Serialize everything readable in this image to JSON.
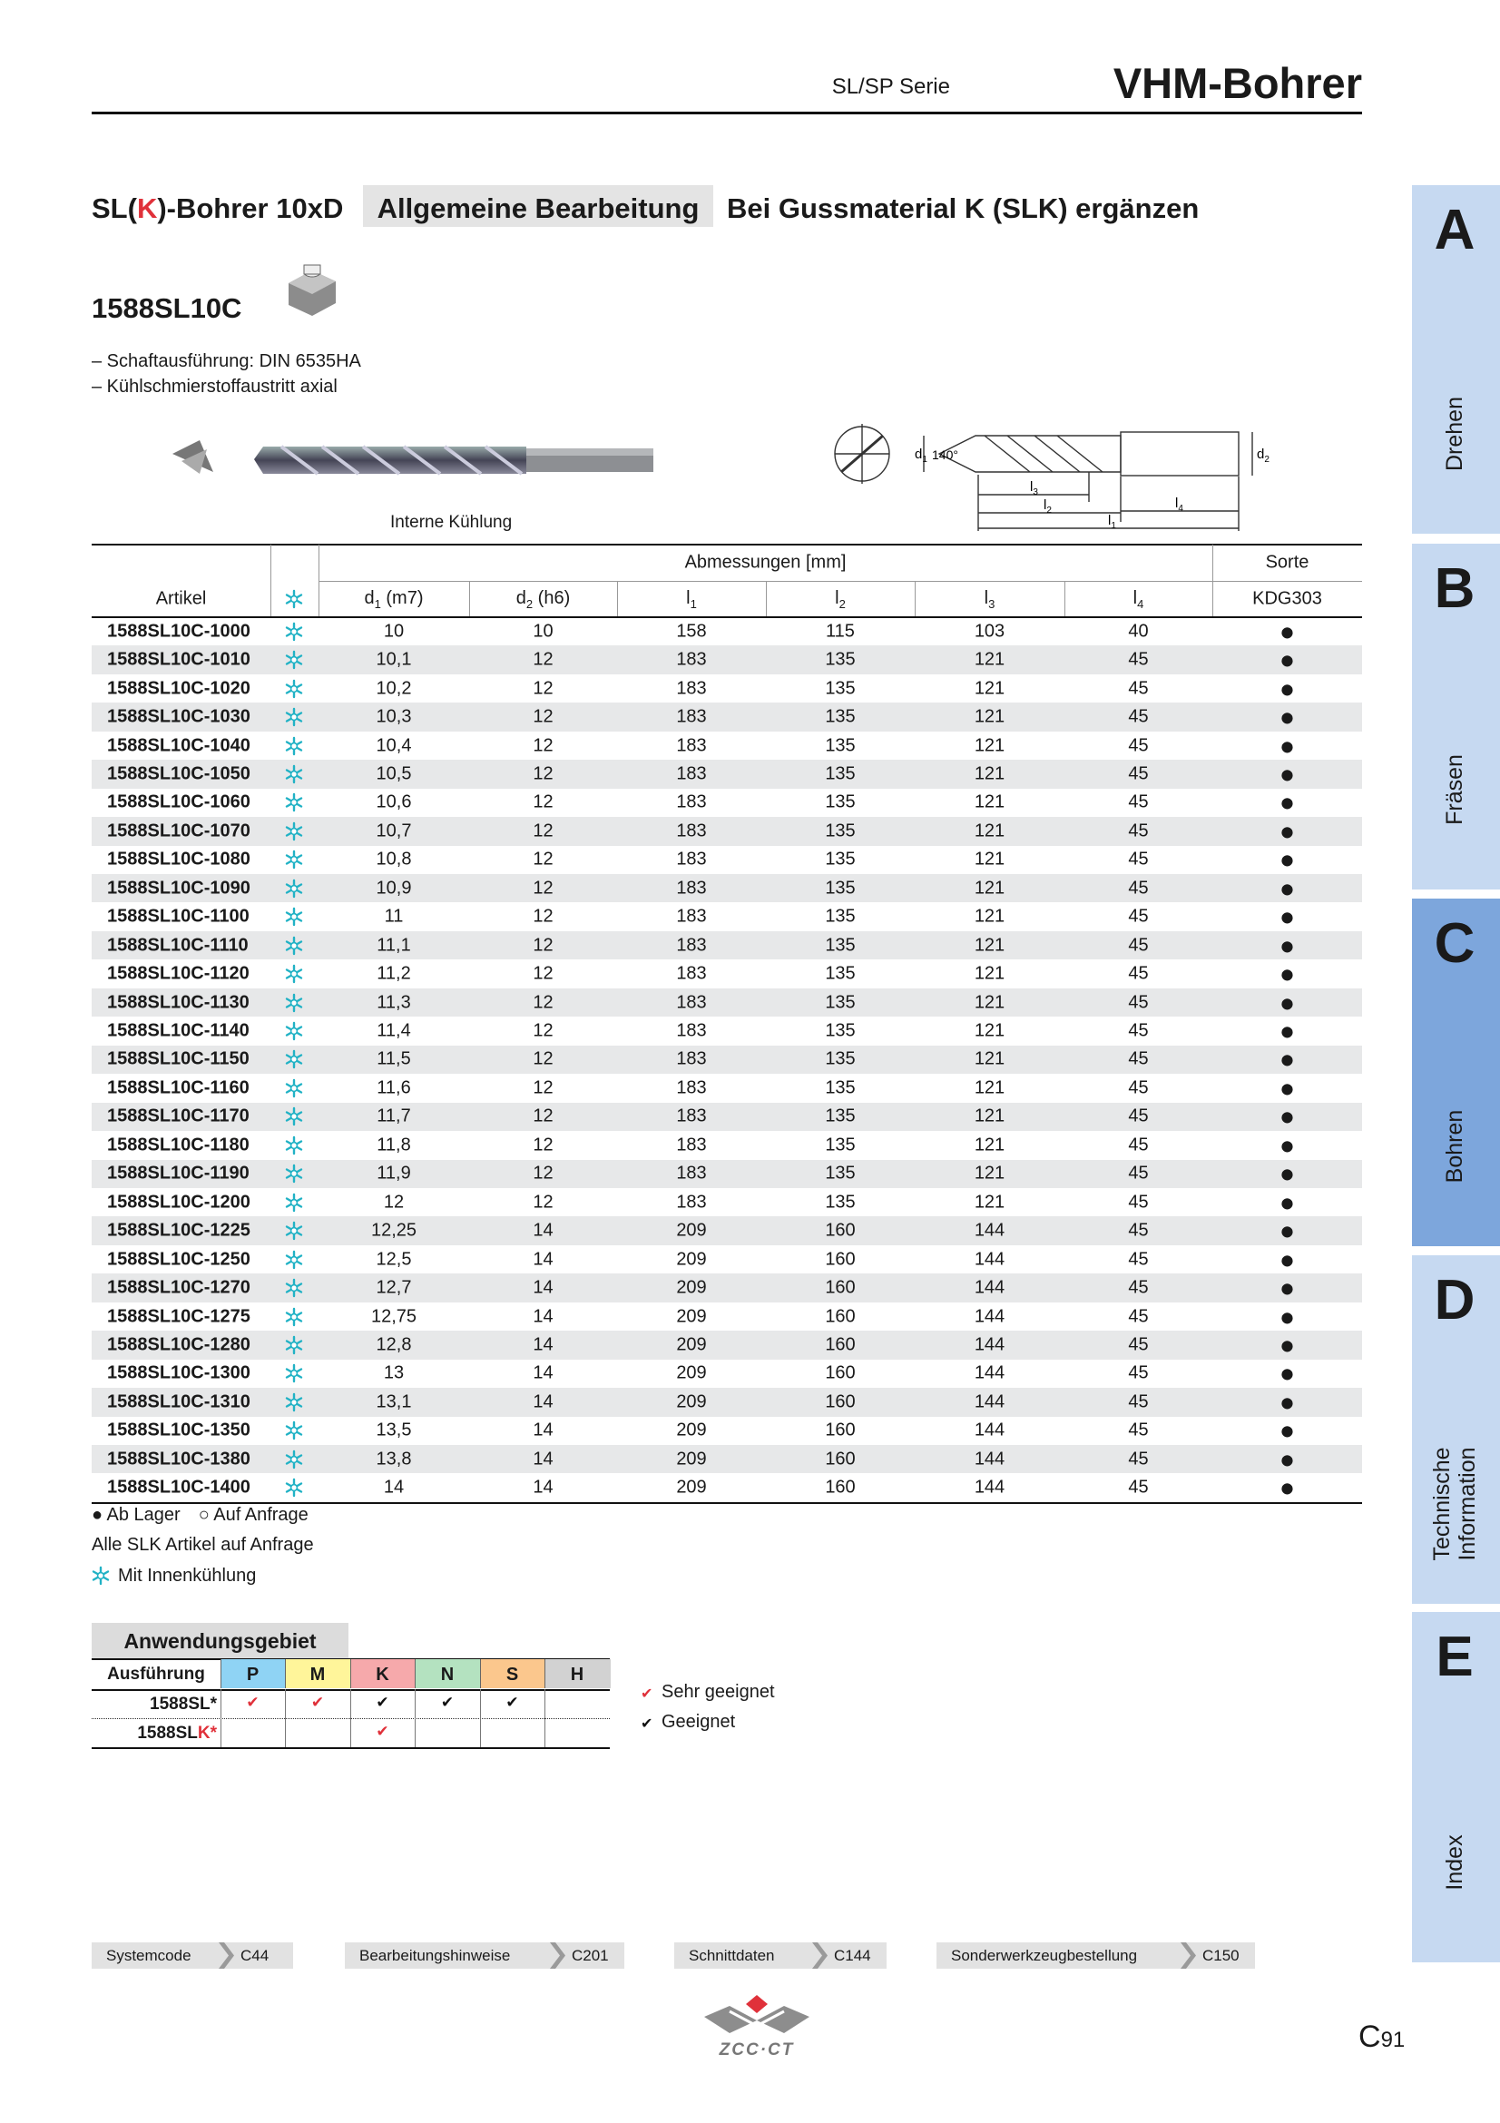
{
  "header": {
    "series": "SL/SP Serie",
    "title": "VHM-Bohrer"
  },
  "product": {
    "title": [
      "SL(",
      "K",
      ")-Bohrer 10xD"
    ],
    "tag": "Allgemeine Bearbeitung",
    "note": "Bei Gussmaterial K (SLK) ergänzen",
    "code": "1588SL10C",
    "features": [
      "– Schaftausführung: DIN 6535HA",
      "– Kühlschmierstoffaustritt axial"
    ],
    "image_caption": "Interne Kühlung",
    "diagram": {
      "angle": "140°",
      "d1": {
        "base": "d",
        "sub": "1"
      },
      "d2": {
        "base": "d",
        "sub": "2"
      },
      "l1": {
        "base": "l",
        "sub": "1"
      },
      "l2": {
        "base": "l",
        "sub": "2"
      },
      "l3": {
        "base": "l",
        "sub": "3"
      },
      "l4": {
        "base": "l",
        "sub": "4"
      }
    }
  },
  "table": {
    "group": "Abmessungen [mm]",
    "grade_group": "Sorte",
    "grade": "KDG303",
    "columns": [
      {
        "text": "Artikel"
      },
      {
        "base": "d",
        "sub": "1",
        "suffix": " (m7)"
      },
      {
        "base": "d",
        "sub": "2",
        "suffix": " (h6)"
      },
      {
        "base": "l",
        "sub": "1"
      },
      {
        "base": "l",
        "sub": "2"
      },
      {
        "base": "l",
        "sub": "3"
      },
      {
        "base": "l",
        "sub": "4"
      }
    ],
    "rows": [
      [
        "1588SL10C-1000",
        "10",
        "10",
        "158",
        "115",
        "103",
        "40",
        "●"
      ],
      [
        "1588SL10C-1010",
        "10,1",
        "12",
        "183",
        "135",
        "121",
        "45",
        "●"
      ],
      [
        "1588SL10C-1020",
        "10,2",
        "12",
        "183",
        "135",
        "121",
        "45",
        "●"
      ],
      [
        "1588SL10C-1030",
        "10,3",
        "12",
        "183",
        "135",
        "121",
        "45",
        "●"
      ],
      [
        "1588SL10C-1040",
        "10,4",
        "12",
        "183",
        "135",
        "121",
        "45",
        "●"
      ],
      [
        "1588SL10C-1050",
        "10,5",
        "12",
        "183",
        "135",
        "121",
        "45",
        "●"
      ],
      [
        "1588SL10C-1060",
        "10,6",
        "12",
        "183",
        "135",
        "121",
        "45",
        "●"
      ],
      [
        "1588SL10C-1070",
        "10,7",
        "12",
        "183",
        "135",
        "121",
        "45",
        "●"
      ],
      [
        "1588SL10C-1080",
        "10,8",
        "12",
        "183",
        "135",
        "121",
        "45",
        "●"
      ],
      [
        "1588SL10C-1090",
        "10,9",
        "12",
        "183",
        "135",
        "121",
        "45",
        "●"
      ],
      [
        "1588SL10C-1100",
        "11",
        "12",
        "183",
        "135",
        "121",
        "45",
        "●"
      ],
      [
        "1588SL10C-1110",
        "11,1",
        "12",
        "183",
        "135",
        "121",
        "45",
        "●"
      ],
      [
        "1588SL10C-1120",
        "11,2",
        "12",
        "183",
        "135",
        "121",
        "45",
        "●"
      ],
      [
        "1588SL10C-1130",
        "11,3",
        "12",
        "183",
        "135",
        "121",
        "45",
        "●"
      ],
      [
        "1588SL10C-1140",
        "11,4",
        "12",
        "183",
        "135",
        "121",
        "45",
        "●"
      ],
      [
        "1588SL10C-1150",
        "11,5",
        "12",
        "183",
        "135",
        "121",
        "45",
        "●"
      ],
      [
        "1588SL10C-1160",
        "11,6",
        "12",
        "183",
        "135",
        "121",
        "45",
        "●"
      ],
      [
        "1588SL10C-1170",
        "11,7",
        "12",
        "183",
        "135",
        "121",
        "45",
        "●"
      ],
      [
        "1588SL10C-1180",
        "11,8",
        "12",
        "183",
        "135",
        "121",
        "45",
        "●"
      ],
      [
        "1588SL10C-1190",
        "11,9",
        "12",
        "183",
        "135",
        "121",
        "45",
        "●"
      ],
      [
        "1588SL10C-1200",
        "12",
        "12",
        "183",
        "135",
        "121",
        "45",
        "●"
      ],
      [
        "1588SL10C-1225",
        "12,25",
        "14",
        "209",
        "160",
        "144",
        "45",
        "●"
      ],
      [
        "1588SL10C-1250",
        "12,5",
        "14",
        "209",
        "160",
        "144",
        "45",
        "●"
      ],
      [
        "1588SL10C-1270",
        "12,7",
        "14",
        "209",
        "160",
        "144",
        "45",
        "●"
      ],
      [
        "1588SL10C-1275",
        "12,75",
        "14",
        "209",
        "160",
        "144",
        "45",
        "●"
      ],
      [
        "1588SL10C-1280",
        "12,8",
        "14",
        "209",
        "160",
        "144",
        "45",
        "●"
      ],
      [
        "1588SL10C-1300",
        "13",
        "14",
        "209",
        "160",
        "144",
        "45",
        "●"
      ],
      [
        "1588SL10C-1310",
        "13,1",
        "14",
        "209",
        "160",
        "144",
        "45",
        "●"
      ],
      [
        "1588SL10C-1350",
        "13,5",
        "14",
        "209",
        "160",
        "144",
        "45",
        "●"
      ],
      [
        "1588SL10C-1380",
        "13,8",
        "14",
        "209",
        "160",
        "144",
        "45",
        "●"
      ],
      [
        "1588SL10C-1400",
        "14",
        "14",
        "209",
        "160",
        "144",
        "45",
        "●"
      ]
    ]
  },
  "legend": {
    "stock": "● Ab Lager",
    "request": "○ Auf Anfrage",
    "slk": "Alle SLK Artikel auf Anfrage",
    "coolant": "Mit Innenkühlung"
  },
  "application": {
    "title": "Anwendungsgebiet",
    "row_header": "Ausführung",
    "materials": [
      {
        "label": "P",
        "color": "#8fd3f4"
      },
      {
        "label": "M",
        "color": "#fff59a"
      },
      {
        "label": "K",
        "color": "#f6a9ab"
      },
      {
        "label": "N",
        "color": "#b4e2c0"
      },
      {
        "label": "S",
        "color": "#fbc78d"
      },
      {
        "label": "H",
        "color": "#d2d2d2"
      }
    ],
    "rows": [
      {
        "name": [
          "1588SL",
          "*"
        ],
        "cells": [
          {
            "symbol": "✔",
            "color": "#e0313a"
          },
          {
            "symbol": "✔",
            "color": "#e0313a"
          },
          {
            "symbol": "✔",
            "color": "#111111"
          },
          {
            "symbol": "✔",
            "color": "#111111"
          },
          {
            "symbol": "✔",
            "color": "#111111"
          },
          null
        ]
      },
      {
        "name": [
          "1588SL",
          "K",
          "*"
        ],
        "cells": [
          null,
          null,
          {
            "symbol": "✔",
            "color": "#e0313a"
          },
          null,
          null,
          null
        ]
      }
    ],
    "key": [
      {
        "symbol": "✔",
        "color": "#e0313a",
        "label": "Sehr geeignet"
      },
      {
        "symbol": "✔",
        "color": "#111111",
        "label": "Geeignet"
      }
    ]
  },
  "footer": {
    "links": [
      {
        "label": "Systemcode",
        "page": "C44"
      },
      {
        "label": "Bearbeitungshinweise",
        "page": "C201"
      },
      {
        "label": "Schnittdaten",
        "page": "C144"
      },
      {
        "label": "Sonderwerkzeugbestellung",
        "page": "C150"
      }
    ],
    "logo": "ZCC·CT",
    "page_letter": "C",
    "page_number": "91"
  },
  "tabs": [
    {
      "letter": "A",
      "label": [
        "Drehen"
      ]
    },
    {
      "letter": "B",
      "label": [
        "Fräsen"
      ]
    },
    {
      "letter": "C",
      "label": [
        "Bohren"
      ],
      "active": true
    },
    {
      "letter": "D",
      "label": [
        "Technische",
        "Information"
      ]
    },
    {
      "letter": "E",
      "label": [
        "Index"
      ]
    }
  ]
}
